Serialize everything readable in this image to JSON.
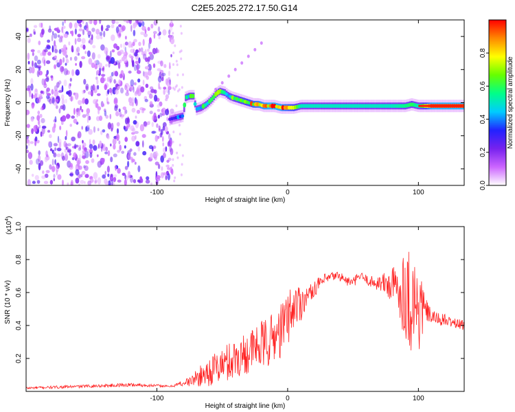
{
  "chart_data": [
    {
      "type": "heatmap",
      "title": "C2E5.2025.272.17.50.G14",
      "xlabel": "Height of straight line (km)",
      "ylabel": "Frequency (Hz)",
      "xlim": [
        -200,
        135
      ],
      "ylim": [
        -50,
        50
      ],
      "xticks": [
        "-100",
        "0",
        "100"
      ],
      "xtick_values": [
        -100,
        0,
        100
      ],
      "yticks": [
        "-40",
        "-20",
        "0",
        "20",
        "40"
      ],
      "ytick_values": [
        -40,
        -20,
        0,
        20,
        40
      ],
      "colorbar": {
        "label": "Normalized spectral amplitude",
        "range": [
          0,
          1
        ],
        "ticks": [
          "0.0",
          "0.2",
          "0.4",
          "0.6",
          "0.8"
        ],
        "tick_values": [
          0.0,
          0.2,
          0.4,
          0.6,
          0.8
        ],
        "colormap": [
          "#ffffff",
          "#cc66ff",
          "#7722ee",
          "#2222ff",
          "#00ccff",
          "#00ff88",
          "#66ff00",
          "#ffff00",
          "#ff8800",
          "#ff0000"
        ]
      },
      "noise_region": {
        "x_range": [
          -200,
          -88
        ],
        "amplitude_range": [
          0.05,
          0.3
        ]
      },
      "ridge": {
        "description": "dominant frequency track",
        "x": [
          -90,
          -85,
          -80,
          -78,
          -75,
          -72,
          -70,
          -66,
          -62,
          -58,
          -55,
          -52,
          -48,
          -45,
          -42,
          -38,
          -34,
          -30,
          -26,
          -22,
          -18,
          -14,
          -10,
          -5,
          0,
          5,
          10,
          20,
          40,
          60,
          80,
          90,
          95,
          100,
          110,
          120,
          135
        ],
        "y": [
          -10,
          -9,
          -8,
          3,
          4,
          4,
          -4,
          -3,
          -1,
          2,
          5,
          7,
          6,
          4,
          3,
          2,
          1,
          0,
          -1,
          -1,
          -2,
          -2,
          -2,
          -3,
          -3,
          -3,
          -2,
          -2,
          -2,
          -2,
          -2,
          -2,
          -1,
          -2,
          -2,
          -2,
          -2
        ],
        "amplitude": [
          0.3,
          0.4,
          0.45,
          0.5,
          0.55,
          0.55,
          0.45,
          0.5,
          0.55,
          0.55,
          0.6,
          0.6,
          0.55,
          0.55,
          0.6,
          0.65,
          0.7,
          0.75,
          0.8,
          0.85,
          0.9,
          0.95,
          0.95,
          0.9,
          0.8,
          0.75,
          0.5,
          0.5,
          0.5,
          0.5,
          0.5,
          0.55,
          0.6,
          0.5,
          0.95,
          0.95,
          0.95
        ]
      },
      "faint_branch": {
        "x": [
          -55,
          -50,
          -45,
          -40,
          -35,
          -30,
          -25,
          -20
        ],
        "y": [
          8,
          12,
          16,
          20,
          24,
          28,
          32,
          36
        ]
      }
    },
    {
      "type": "line",
      "title": "",
      "xlabel": "Height of straight line (km)",
      "ylabel": "SNR (10 * v/v)",
      "y_multiplier": "(x10",
      "y_multiplier_exp": "4",
      "y_multiplier_close": ")",
      "xlim": [
        -200,
        135
      ],
      "ylim": [
        0,
        1.0
      ],
      "xticks": [
        "-100",
        "0",
        "100"
      ],
      "xtick_values": [
        -100,
        0,
        100
      ],
      "yticks": [
        "0.2",
        "0.4",
        "0.6",
        "0.8",
        "1.0"
      ],
      "ytick_values": [
        0.2,
        0.4,
        0.6,
        0.8,
        1.0
      ],
      "color": "#ff2222",
      "series": [
        {
          "name": "SNR",
          "x": [
            -200,
            -180,
            -160,
            -140,
            -120,
            -100,
            -90,
            -80,
            -75,
            -70,
            -65,
            -60,
            -55,
            -50,
            -45,
            -40,
            -35,
            -30,
            -25,
            -20,
            -15,
            -10,
            -5,
            0,
            5,
            10,
            15,
            20,
            25,
            30,
            35,
            40,
            45,
            50,
            55,
            60,
            65,
            70,
            75,
            80,
            85,
            90,
            95,
            100,
            105,
            110,
            115,
            120,
            125,
            130,
            135
          ],
          "y": [
            0.02,
            0.025,
            0.03,
            0.035,
            0.04,
            0.035,
            0.03,
            0.05,
            0.06,
            0.08,
            0.1,
            0.12,
            0.14,
            0.16,
            0.18,
            0.2,
            0.22,
            0.24,
            0.26,
            0.28,
            0.3,
            0.33,
            0.37,
            0.45,
            0.52,
            0.54,
            0.58,
            0.62,
            0.66,
            0.68,
            0.7,
            0.7,
            0.67,
            0.66,
            0.7,
            0.68,
            0.66,
            0.66,
            0.65,
            0.64,
            0.62,
            0.6,
            0.55,
            0.5,
            0.5,
            0.45,
            0.44,
            0.43,
            0.42,
            0.41,
            0.4
          ],
          "jitter": [
            0.008,
            0.008,
            0.009,
            0.01,
            0.012,
            0.008,
            0.005,
            0.02,
            0.03,
            0.05,
            0.07,
            0.09,
            0.1,
            0.11,
            0.12,
            0.13,
            0.13,
            0.13,
            0.14,
            0.15,
            0.16,
            0.16,
            0.17,
            0.17,
            0.15,
            0.12,
            0.05,
            0.05,
            0.04,
            0.04,
            0.03,
            0.03,
            0.03,
            0.03,
            0.03,
            0.03,
            0.04,
            0.05,
            0.08,
            0.12,
            0.18,
            0.28,
            0.35,
            0.32,
            0.08,
            0.04,
            0.04,
            0.04,
            0.03,
            0.03,
            0.03
          ]
        }
      ]
    }
  ]
}
